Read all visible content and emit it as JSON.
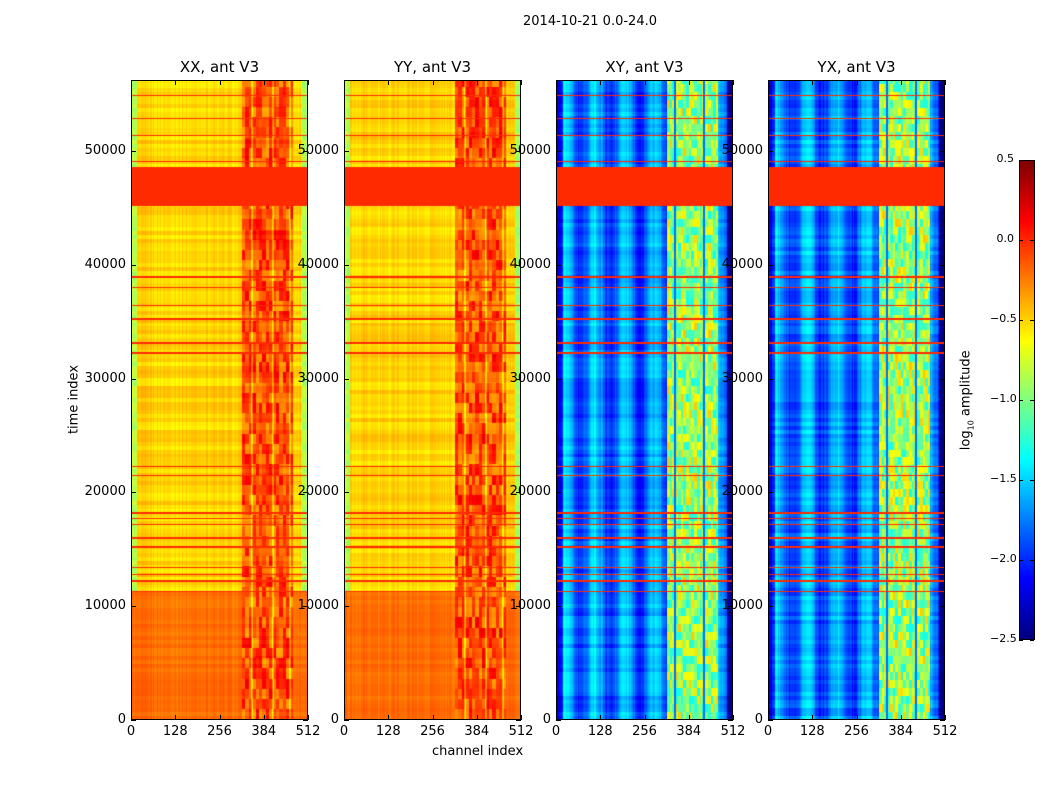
{
  "chart_data": {
    "type": "heatmap",
    "title": "2014-10-21 0.0-24.0",
    "xlabel": "channel index",
    "ylabel": "time index",
    "xlim": [
      0,
      512
    ],
    "ylim": [
      0,
      56250
    ],
    "xticks": [
      0,
      128,
      256,
      384,
      512
    ],
    "yticks": [
      0,
      10000,
      20000,
      30000,
      40000,
      50000
    ],
    "panels": [
      {
        "title": "XX, ant V3",
        "kind": "auto"
      },
      {
        "title": "YY, ant V3",
        "kind": "auto"
      },
      {
        "title": "XY, ant V3",
        "kind": "cross"
      },
      {
        "title": "YX, ant V3",
        "kind": "cross"
      }
    ],
    "colorbar": {
      "label": "log",
      "label_sub": "10",
      "label_rest": " amplitude",
      "colormap": "jet",
      "range": [
        -2.5,
        0.5
      ],
      "ticks": [
        "0.5",
        "0.0",
        "−0.5",
        "−1.0",
        "−1.5",
        "−2.0",
        "−2.5"
      ],
      "tick_values": [
        0.5,
        0.0,
        -0.5,
        -1.0,
        -1.5,
        -2.0,
        -2.5
      ]
    },
    "flagged_band": [
      45300,
      48700
    ],
    "flagged_times": [
      11300,
      12200,
      12800,
      13400,
      15200,
      16000,
      17200,
      17700,
      18200,
      21500,
      22300,
      32300,
      33200,
      35300,
      36500,
      38100,
      39000,
      49200,
      51500,
      53000,
      55000
    ],
    "approx_levels": {
      "auto_base": -0.5,
      "auto_band_320_470": -0.1,
      "auto_low_time": -0.2,
      "cross_base": -1.75,
      "cross_band_320_470": -0.9,
      "flag": 0.0
    }
  }
}
